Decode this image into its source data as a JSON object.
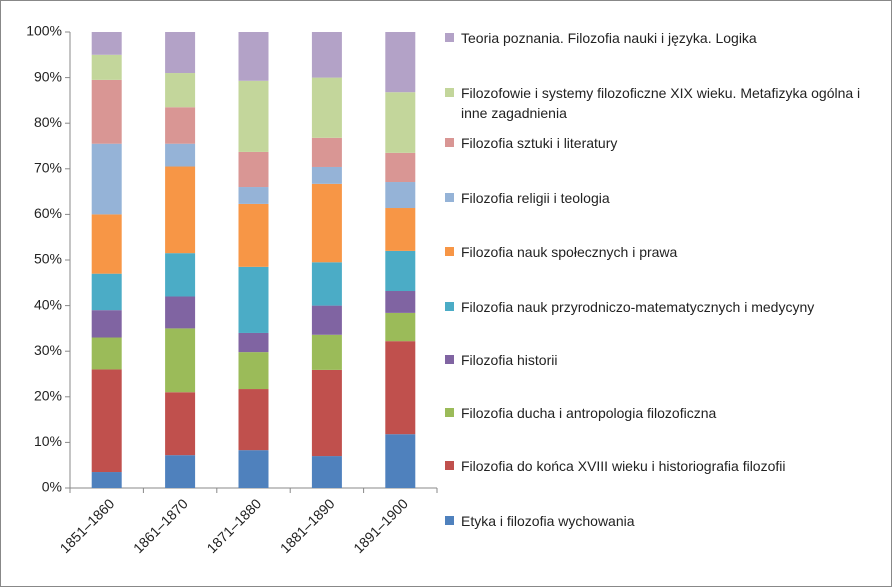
{
  "chart_data": {
    "type": "stacked_bar",
    "categories": [
      "1851–1860",
      "1861–1870",
      "1871–1880",
      "1881–1890",
      "1891–1900"
    ],
    "series": [
      {
        "name": "Etyka i filozofia wychowania",
        "color": "#4f81bd",
        "values": [
          3.5,
          7.2,
          8.3,
          7,
          11.8
        ]
      },
      {
        "name": "Filozofia do końca XVIII wieku i historiografia filozofii",
        "color": "#c0504d",
        "values": [
          22.5,
          13.8,
          13.4,
          18.9,
          20.4
        ]
      },
      {
        "name": "Filozofia ducha i antropologia filozoficzna",
        "color": "#9bbb59",
        "values": [
          7,
          14,
          8.1,
          7.7,
          6.2
        ]
      },
      {
        "name": "Filozofia historii",
        "color": "#8064a2",
        "values": [
          6,
          7,
          4.2,
          6.4,
          4.8
        ]
      },
      {
        "name": "Filozofia nauk przyrodniczo-matematycznych i medycyny",
        "color": "#4bacc6",
        "values": [
          8,
          9.5,
          14.5,
          9.5,
          8.8
        ]
      },
      {
        "name": "Filozofia nauk społecznych i prawa",
        "color": "#f79646",
        "values": [
          13,
          19,
          13.8,
          17.2,
          9.4
        ]
      },
      {
        "name": "Filozofia religii i teologia",
        "color": "#95b3d7",
        "values": [
          15.5,
          5,
          3.7,
          3.7,
          5.7
        ]
      },
      {
        "name": "Filozofia sztuki i literatury",
        "color": "#d99694",
        "values": [
          14,
          8,
          7.7,
          6.4,
          6.4
        ]
      },
      {
        "name": "Filozofowie i systemy filozoficzne XIX wieku. Metafizyka ogólna i inne zagadnienia",
        "color": "#c3d69b",
        "values": [
          5.5,
          7.5,
          15.6,
          13.2,
          13.3
        ]
      },
      {
        "name": "Teoria poznania. Filozofia nauki i języka. Logika",
        "color": "#b3a2c7",
        "values": [
          5,
          9,
          10.7,
          10,
          13.2
        ]
      }
    ],
    "ylim": [
      0,
      100
    ],
    "yticks": [
      {
        "value": 0,
        "label": "0%"
      },
      {
        "value": 10,
        "label": "10%"
      },
      {
        "value": 20,
        "label": "20%"
      },
      {
        "value": 30,
        "label": "30%"
      },
      {
        "value": 40,
        "label": "40%"
      },
      {
        "value": 50,
        "label": "50%"
      },
      {
        "value": 60,
        "label": "60%"
      },
      {
        "value": 70,
        "label": "70%"
      },
      {
        "value": 80,
        "label": "80%"
      },
      {
        "value": 90,
        "label": "90%"
      },
      {
        "value": 100,
        "label": "100%"
      }
    ],
    "legend": "right"
  }
}
